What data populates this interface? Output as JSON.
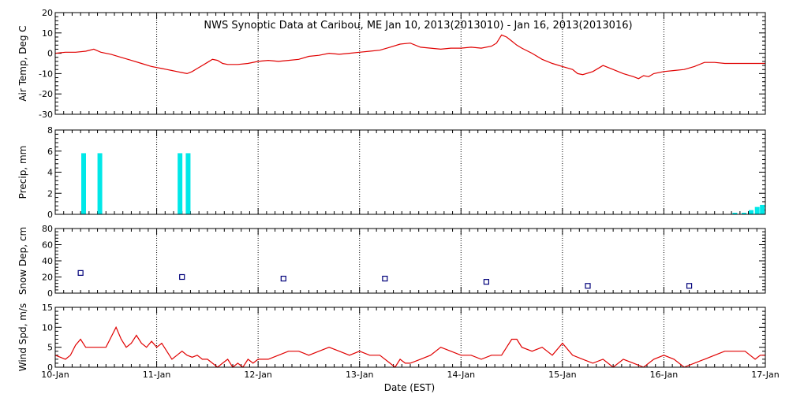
{
  "title": "NWS Synoptic Data at Caribou, ME   Jan 10, 2013(2013010) - Jan 16, 2013(2013016)",
  "colors": {
    "temp": "#e00000",
    "precip": "#00e8e8",
    "snow": "#00007a",
    "wind": "#e00000",
    "grid": "#000000"
  },
  "chart_data": [
    {
      "type": "line",
      "id": "air-temp",
      "ylabel": "Air Temp, Deg C",
      "ylim": [
        -30,
        20
      ],
      "yticks": [
        -30,
        -20,
        -10,
        0,
        10,
        20
      ],
      "xlim": [
        0,
        7
      ],
      "grid": true,
      "series": [
        {
          "x": [
            0.0,
            0.1,
            0.2,
            0.3,
            0.38,
            0.45,
            0.55,
            0.65,
            0.75,
            0.85,
            0.95,
            1.0,
            1.05,
            1.1,
            1.15,
            1.2,
            1.25,
            1.3,
            1.35,
            1.4,
            1.45,
            1.5,
            1.55,
            1.6,
            1.65,
            1.7,
            1.8,
            1.9,
            2.0,
            2.1,
            2.2,
            2.3,
            2.4,
            2.5,
            2.6,
            2.7,
            2.8,
            2.9,
            3.0,
            3.1,
            3.2,
            3.3,
            3.4,
            3.5,
            3.6,
            3.7,
            3.8,
            3.9,
            4.0,
            4.1,
            4.2,
            4.3,
            4.35,
            4.4,
            4.45,
            4.5,
            4.55,
            4.6,
            4.7,
            4.8,
            4.9,
            5.0,
            5.1,
            5.15,
            5.2,
            5.3,
            5.4,
            5.5,
            5.6,
            5.7,
            5.75,
            5.8,
            5.85,
            5.9,
            6.0,
            6.1,
            6.2,
            6.3,
            6.4,
            6.5,
            6.6,
            6.7,
            6.8,
            6.9,
            7.0
          ],
          "y": [
            0,
            0.5,
            0.5,
            1,
            2,
            0.5,
            -0.5,
            -2,
            -3.5,
            -5,
            -6.5,
            -7,
            -7.5,
            -8,
            -8.5,
            -9,
            -9.5,
            -10,
            -9,
            -7.5,
            -6,
            -4.5,
            -3,
            -3.5,
            -5,
            -5.5,
            -5.5,
            -5,
            -4,
            -3.5,
            -4,
            -3.5,
            -3,
            -1.5,
            -1,
            0,
            -0.5,
            0,
            0.5,
            1,
            1.5,
            3,
            4.5,
            5,
            3,
            2.5,
            2,
            2.5,
            2.5,
            3,
            2.5,
            3.5,
            5,
            9,
            8,
            6,
            4,
            2.5,
            0,
            -3,
            -5,
            -6.5,
            -8,
            -10,
            -10.5,
            -9,
            -6,
            -8,
            -10,
            -11.5,
            -12.5,
            -11,
            -11.5,
            -10,
            -9,
            -8.5,
            -8,
            -6.5,
            -4.5,
            -4.5,
            -5,
            -5,
            -5,
            -5,
            -5
          ]
        }
      ]
    },
    {
      "type": "bar",
      "id": "precip",
      "ylabel": "Precip, mm",
      "ylim": [
        0,
        8
      ],
      "yticks": [
        0,
        2,
        4,
        6,
        8
      ],
      "xlim": [
        0,
        7
      ],
      "grid": true,
      "bars": [
        {
          "x": 0.28,
          "y": 5.8
        },
        {
          "x": 0.44,
          "y": 5.8
        },
        {
          "x": 1.23,
          "y": 5.8
        },
        {
          "x": 1.31,
          "y": 5.8
        },
        {
          "x": 6.7,
          "y": 0.15
        },
        {
          "x": 6.79,
          "y": 0.15
        },
        {
          "x": 6.86,
          "y": 0.4
        },
        {
          "x": 6.92,
          "y": 0.7
        },
        {
          "x": 6.97,
          "y": 0.9
        }
      ]
    },
    {
      "type": "scatter",
      "id": "snow-depth",
      "ylabel": "Snow Dep, cm",
      "ylim": [
        0,
        80
      ],
      "yticks": [
        0,
        20,
        40,
        60,
        80
      ],
      "xlim": [
        0,
        7
      ],
      "grid": true,
      "points": [
        {
          "x": 0.25,
          "y": 25
        },
        {
          "x": 1.25,
          "y": 20
        },
        {
          "x": 2.25,
          "y": 18
        },
        {
          "x": 3.25,
          "y": 18
        },
        {
          "x": 4.25,
          "y": 14
        },
        {
          "x": 5.25,
          "y": 9
        },
        {
          "x": 6.25,
          "y": 9
        }
      ]
    },
    {
      "type": "line",
      "id": "wind-speed",
      "ylabel": "Wind Spd, m/s",
      "ylim": [
        0,
        15
      ],
      "yticks": [
        0,
        5,
        10,
        15
      ],
      "xlim": [
        0,
        7
      ],
      "xlabel": "Date (EST)",
      "xtick_labels": [
        "10-Jan",
        "11-Jan",
        "12-Jan",
        "13-Jan",
        "14-Jan",
        "15-Jan",
        "16-Jan",
        "17-Jan"
      ],
      "grid": true,
      "series": [
        {
          "x": [
            0.0,
            0.05,
            0.1,
            0.15,
            0.2,
            0.25,
            0.3,
            0.35,
            0.4,
            0.45,
            0.5,
            0.55,
            0.6,
            0.65,
            0.7,
            0.75,
            0.8,
            0.85,
            0.9,
            0.95,
            1.0,
            1.05,
            1.1,
            1.15,
            1.2,
            1.25,
            1.3,
            1.35,
            1.4,
            1.45,
            1.5,
            1.55,
            1.6,
            1.65,
            1.7,
            1.75,
            1.8,
            1.85,
            1.9,
            1.95,
            2.0,
            2.1,
            2.2,
            2.3,
            2.4,
            2.5,
            2.6,
            2.7,
            2.8,
            2.9,
            3.0,
            3.1,
            3.2,
            3.3,
            3.35,
            3.4,
            3.45,
            3.5,
            3.6,
            3.7,
            3.8,
            3.9,
            4.0,
            4.1,
            4.2,
            4.3,
            4.4,
            4.45,
            4.5,
            4.55,
            4.6,
            4.7,
            4.8,
            4.9,
            5.0,
            5.1,
            5.2,
            5.3,
            5.4,
            5.5,
            5.6,
            5.7,
            5.8,
            5.9,
            6.0,
            6.1,
            6.2,
            6.3,
            6.4,
            6.5,
            6.6,
            6.7,
            6.8,
            6.85,
            6.9,
            6.95,
            7.0
          ],
          "y": [
            3,
            2.5,
            2,
            3,
            5.5,
            7,
            5,
            5,
            5,
            5,
            5,
            7.5,
            10,
            7,
            5,
            6,
            8,
            6,
            5,
            6.5,
            5,
            6,
            4,
            2,
            3,
            4,
            3,
            2.5,
            3,
            2,
            2,
            1,
            0,
            1,
            2,
            0,
            1,
            0,
            2,
            1,
            2,
            2,
            3,
            4,
            4,
            3,
            4,
            5,
            4,
            3,
            4,
            3,
            3,
            1,
            0,
            2,
            1,
            1,
            2,
            3,
            5,
            4,
            3,
            3,
            2,
            3,
            3,
            5,
            7,
            7,
            5,
            4,
            5,
            3,
            6,
            3,
            2,
            1,
            2,
            0,
            2,
            1,
            0,
            2,
            3,
            2,
            0,
            1,
            2,
            3,
            4,
            4,
            4,
            3,
            2,
            3,
            3
          ]
        }
      ]
    }
  ]
}
